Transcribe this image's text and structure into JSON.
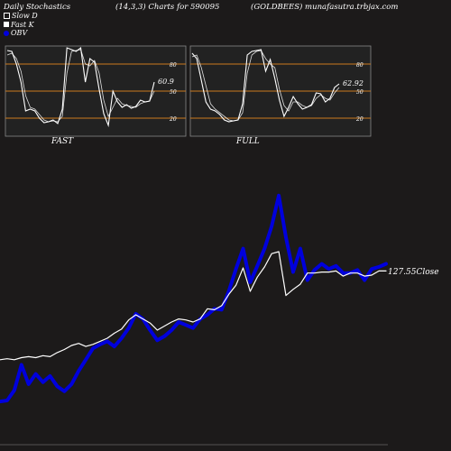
{
  "header": {
    "left": "Daily Stochastics",
    "center": "(14,3,3) Charts for 590095",
    "right": "(GOLDBEES) munafasutra.trbjax.com"
  },
  "legend": {
    "slow": "Slow  D",
    "fast": "Fast K",
    "obv": "OBV"
  },
  "colors": {
    "background": "#1c1a1a",
    "panel": "#222222",
    "band": "#cc7a1e",
    "obv": "#0000dd",
    "price": "#ffffff"
  },
  "chart_data": [
    {
      "type": "line",
      "caption": "FAST",
      "ylim": [
        0,
        100
      ],
      "yticks": [
        "80",
        "50",
        "20"
      ],
      "levels": [
        80,
        50,
        20
      ],
      "value_label": "60.9",
      "series": [
        {
          "name": "Fast K",
          "values": [
            95,
            94,
            80,
            60,
            28,
            30,
            28,
            20,
            15,
            16,
            18,
            14,
            30,
            98,
            96,
            94,
            98,
            60,
            86,
            82,
            52,
            25,
            12,
            50,
            38,
            32,
            35,
            31,
            33,
            40,
            38,
            39,
            60
          ]
        },
        {
          "name": "Slow  D",
          "values": [
            90,
            92,
            86,
            72,
            45,
            32,
            30,
            24,
            18,
            16,
            17,
            16,
            22,
            70,
            94,
            95,
            96,
            80,
            78,
            84,
            70,
            40,
            22,
            32,
            42,
            36,
            34,
            33,
            32,
            36,
            38,
            39,
            50
          ]
        }
      ]
    },
    {
      "type": "line",
      "caption": "FULL",
      "ylim": [
        0,
        100
      ],
      "yticks": [
        "80",
        "50",
        "20"
      ],
      "levels": [
        80,
        50,
        20
      ],
      "value_label": "62.92",
      "series": [
        {
          "name": "Fast K",
          "values": [
            92,
            86,
            62,
            38,
            30,
            28,
            24,
            18,
            16,
            17,
            18,
            36,
            90,
            94,
            95,
            96,
            72,
            85,
            64,
            40,
            22,
            32,
            44,
            36,
            30,
            32,
            35,
            48,
            47,
            38,
            42,
            54,
            58
          ]
        },
        {
          "name": "Slow  D",
          "values": [
            88,
            90,
            76,
            56,
            36,
            30,
            26,
            22,
            18,
            17,
            18,
            26,
            70,
            90,
            94,
            95,
            86,
            80,
            76,
            52,
            34,
            28,
            38,
            38,
            34,
            32,
            34,
            42,
            46,
            42,
            40,
            48,
            54
          ]
        }
      ]
    },
    {
      "type": "line",
      "close_label": "127.55",
      "close_suffix": "Close",
      "series": [
        {
          "name": "Close",
          "values": [
            12.6,
            12.8,
            12.6,
            13.0,
            13.2,
            13.0,
            13.4,
            13.2,
            14.0,
            14.6,
            15.4,
            15.8,
            15.2,
            15.6,
            16.2,
            16.8,
            17.8,
            18.6,
            20.4,
            21.4,
            20.6,
            19.8,
            18.4,
            19.2,
            20.0,
            20.6,
            20.4,
            20.0,
            20.6,
            22.6,
            22.4,
            23.2,
            25.4,
            27.2,
            30.6,
            26.0,
            28.8,
            30.8,
            33.4,
            33.8,
            25.2,
            26.4,
            27.4,
            29.6,
            29.6,
            29.8,
            29.8,
            30.0,
            29.0,
            29.6,
            29.6,
            29.0,
            29.2,
            30.0,
            30.0
          ]
        },
        {
          "name": "OBV",
          "values": [
            4.4,
            4.6,
            6.6,
            11.6,
            7.8,
            9.8,
            8.2,
            9.4,
            7.4,
            6.4,
            7.8,
            10.4,
            12.6,
            14.8,
            15.6,
            16.2,
            15.2,
            16.8,
            18.8,
            21.6,
            20.6,
            18.4,
            16.4,
            17.2,
            18.4,
            20.0,
            19.4,
            18.8,
            20.6,
            21.4,
            22.6,
            22.4,
            26.0,
            30.4,
            34.4,
            27.8,
            31.0,
            34.4,
            38.8,
            44.8,
            36.6,
            29.8,
            34.4,
            28.2,
            30.2,
            31.4,
            30.4,
            31.0,
            29.6,
            29.6,
            30.2,
            28.2,
            30.4,
            30.8,
            31.4
          ]
        }
      ]
    }
  ]
}
